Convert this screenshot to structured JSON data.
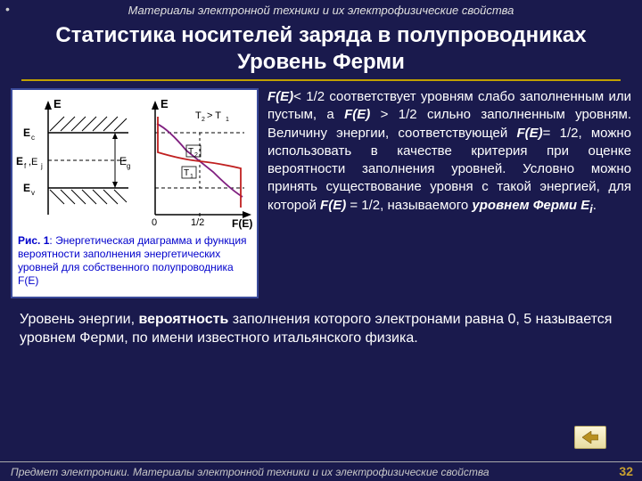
{
  "header_sub": "Материалы электронной техники и их электрофизические свойства",
  "title_l1": "Статистика носителей заряда в полупроводниках",
  "title_l2": "Уровень Ферми",
  "diagram": {
    "bg": "#ffffff",
    "border": "#3a4a9a",
    "axis_color": "#000000",
    "hatch_color": "#000000",
    "curve_colors": {
      "t1": "#c02020",
      "t2": "#802080"
    },
    "labels": {
      "E": "E",
      "Ec": "E",
      "Ef": "E",
      "Ej": "E",
      "Ev": "E",
      "Fg": "E",
      "FE": "F(E)",
      "zero": "0",
      "half": "1/2",
      "T1": "T",
      "T2": "T",
      "Trel": "T"
    },
    "sub": {
      "c": "c",
      "f": "f",
      "j": "j",
      "v": "v",
      "g": "g",
      "1": "1",
      "2": "2",
      "rel": "2 > T1"
    },
    "caption_b": "Рис. 1",
    "caption_rest": ": Энергетическая диаграмма и функция вероятности заполнения энергетических уровней для собственного полупроводника F(E)"
  },
  "para_html": "<em>F(E)</em>&lt; 1/2 соответствует уровням слабо заполненным или пустым, а <em>F(E)</em> &gt; 1/2 сильно заполненным уровням. Величину энергии, соответствующей <em>F(E)</em>= 1/2, можно использовать в качестве критерия при оценке вероятности заполнения уровней. Условно можно принять существование уровня с такой энергией, для которой <em>F(E)</em> = 1/2, называемого <em>уровнем Ферми E<sub>і</sub></em>.",
  "para2_html": "Уровень энергии, <strong>вероятность</strong> заполнения которого электронами равна 0, 5 называется уровнем Ферми, по имени известного итальянского физика.",
  "footer": "Предмет электроники. Материалы электронной техники и их электрофизические свойства",
  "page": "32"
}
